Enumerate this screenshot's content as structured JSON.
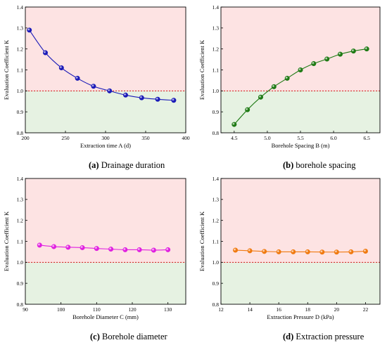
{
  "chart_data": [
    {
      "type": "line",
      "caption_tag": "(a)",
      "caption_text": "Drainage duration",
      "xlabel": "Extraction time A (d)",
      "ylabel": "Evaluation Coefficient K",
      "xlim": [
        200,
        400
      ],
      "ylim": [
        0.8,
        1.4
      ],
      "xticks": [
        "200",
        "250",
        "300",
        "350",
        "400"
      ],
      "yticks": [
        "0.8",
        "0.9",
        "1.0",
        "1.1",
        "1.2",
        "1.3",
        "1.4"
      ],
      "threshold": 1.0,
      "color": "#1a1ab8",
      "series": [
        {
          "x": [
            205,
            225,
            245,
            265,
            285,
            305,
            325,
            345,
            365,
            385
          ],
          "y": [
            1.29,
            1.182,
            1.11,
            1.06,
            1.022,
            1.0,
            0.98,
            0.967,
            0.96,
            0.955
          ]
        }
      ]
    },
    {
      "type": "line",
      "caption_tag": "(b)",
      "caption_text": "borehole spacing",
      "xlabel": "Borehole Spacing B (m)",
      "ylabel": "Evaluation Coefficient K",
      "xlim": [
        4.3,
        6.7
      ],
      "ylim": [
        0.8,
        1.4
      ],
      "xticks": [
        "4.5",
        "5.0",
        "5.5",
        "6.0",
        "6.5"
      ],
      "yticks": [
        "0.8",
        "0.9",
        "1.0",
        "1.1",
        "1.2",
        "1.3",
        "1.4"
      ],
      "threshold": 1.0,
      "color": "#1e7a14",
      "series": [
        {
          "x": [
            4.5,
            4.7,
            4.9,
            5.1,
            5.3,
            5.5,
            5.7,
            5.9,
            6.1,
            6.3,
            6.5
          ],
          "y": [
            0.84,
            0.91,
            0.97,
            1.02,
            1.06,
            1.1,
            1.13,
            1.152,
            1.175,
            1.19,
            1.2
          ]
        }
      ]
    },
    {
      "type": "line",
      "caption_tag": "(c)",
      "caption_text": "Borehole diameter",
      "xlabel": "Borehole Diameter C (mm)",
      "ylabel": "Evaluation Coefficient K",
      "xlim": [
        90,
        135
      ],
      "ylim": [
        0.8,
        1.4
      ],
      "xticks": [
        "90",
        "100",
        "110",
        "120",
        "130"
      ],
      "yticks": [
        "0.8",
        "0.9",
        "1.0",
        "1.1",
        "1.2",
        "1.3",
        "1.4"
      ],
      "threshold": 1.0,
      "color": "#e020e0",
      "series": [
        {
          "x": [
            94,
            98,
            102,
            106,
            110,
            114,
            118,
            122,
            126,
            130
          ],
          "y": [
            1.082,
            1.075,
            1.072,
            1.07,
            1.066,
            1.063,
            1.06,
            1.06,
            1.058,
            1.06
          ]
        }
      ]
    },
    {
      "type": "line",
      "caption_tag": "(d)",
      "caption_text": "Extraction pressure",
      "xlabel": "Extraction Pressure D (kPa)",
      "ylabel": "Evaluation Coefficient K",
      "xlim": [
        12,
        23
      ],
      "ylim": [
        0.8,
        1.4
      ],
      "xticks": [
        "12",
        "14",
        "16",
        "18",
        "20",
        "22"
      ],
      "yticks": [
        "0.8",
        "0.9",
        "1.0",
        "1.1",
        "1.2",
        "1.3",
        "1.4"
      ],
      "threshold": 1.0,
      "color": "#f07a10",
      "series": [
        {
          "x": [
            13,
            14,
            15,
            16,
            17,
            18,
            19,
            20,
            21,
            22
          ],
          "y": [
            1.058,
            1.055,
            1.052,
            1.05,
            1.05,
            1.05,
            1.049,
            1.049,
            1.05,
            1.053
          ]
        }
      ]
    }
  ],
  "colors": {
    "above_region": "#fde3e3",
    "below_region": "#e6f2e2",
    "threshold_line": "#d01818"
  }
}
